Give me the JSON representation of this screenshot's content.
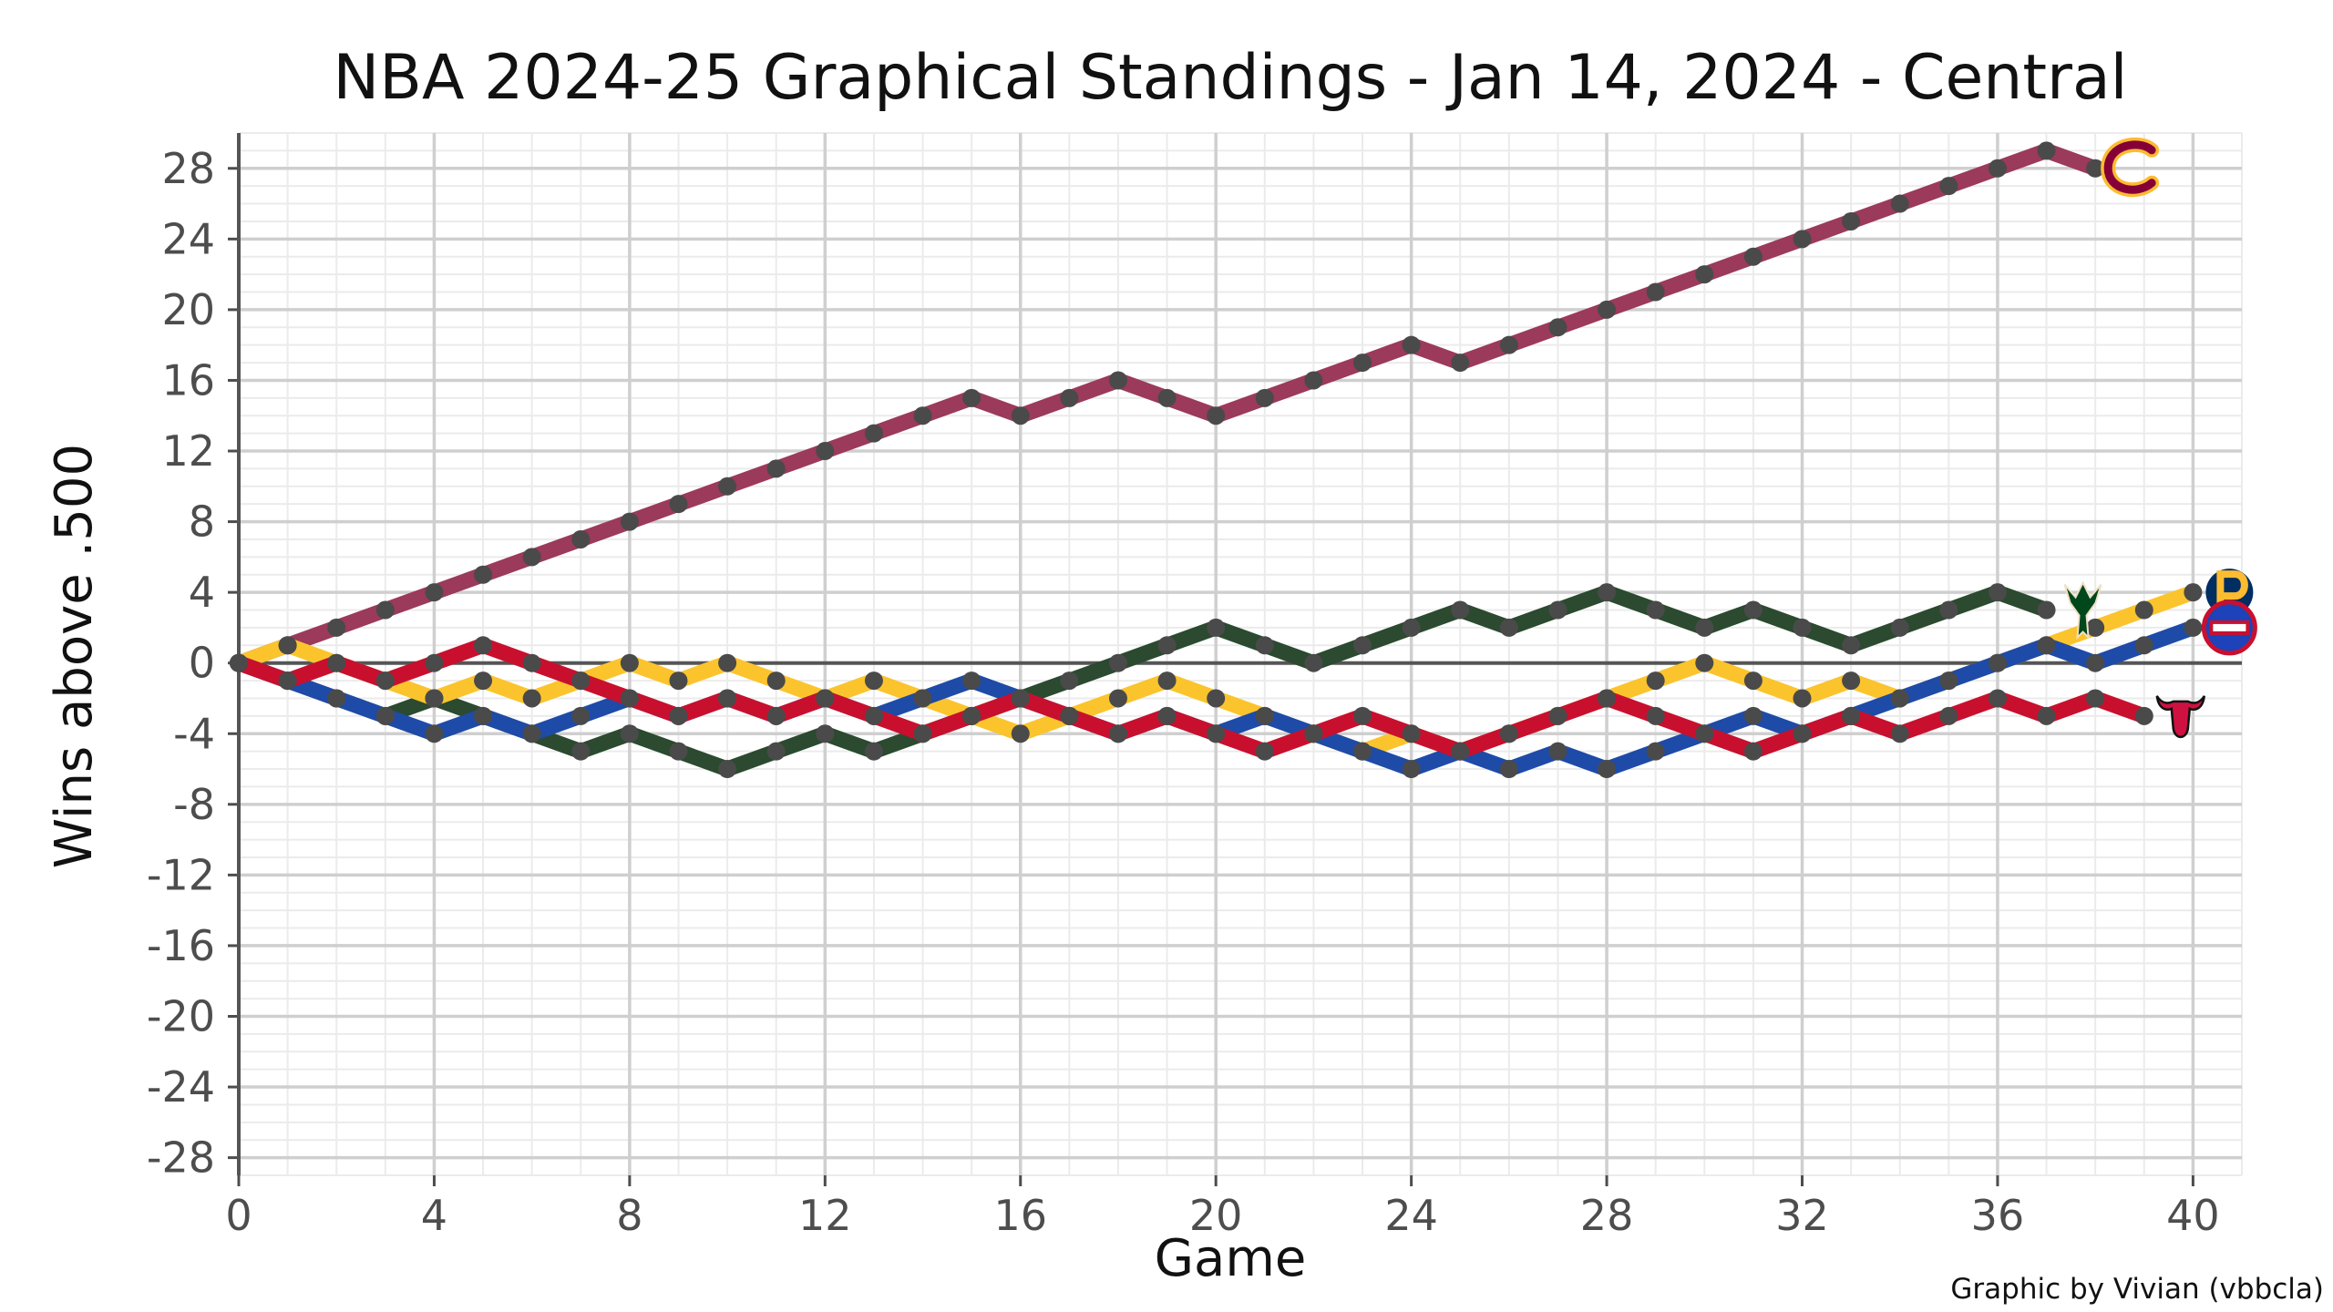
{
  "chart_data": {
    "type": "line",
    "title": "NBA 2024-25 Graphical Standings - Jan 14, 2024 - Central",
    "xlabel": "Game",
    "ylabel": "Wins above .500",
    "credit": "Graphic by Vivian (vbbcla)",
    "xlim": [
      0,
      41
    ],
    "ylim": [
      -29,
      30
    ],
    "x_ticks": [
      0,
      4,
      8,
      12,
      16,
      20,
      24,
      28,
      32,
      36,
      40
    ],
    "y_ticks": [
      28,
      24,
      20,
      16,
      12,
      8,
      4,
      0,
      -4,
      -8,
      -12,
      -16,
      -20,
      -24,
      -28
    ],
    "grid": true,
    "reference_line_y": 0,
    "series": [
      {
        "team": "cavaliers",
        "icon": "cavaliers-logo-icon",
        "color": "#9b3a5a",
        "dash_color": "#4a4a4a",
        "values": [
          0,
          1,
          2,
          3,
          4,
          5,
          6,
          7,
          8,
          9,
          10,
          11,
          12,
          13,
          14,
          15,
          14,
          15,
          16,
          15,
          14,
          15,
          16,
          17,
          18,
          17,
          18,
          19,
          20,
          21,
          22,
          23,
          24,
          25,
          26,
          27,
          28,
          29,
          28
        ]
      },
      {
        "team": "bucks",
        "icon": "bucks-logo-icon",
        "color": "#2b4a2f",
        "dash_color": "#4a4a4a",
        "values": [
          0,
          -1,
          -2,
          -3,
          -2,
          -3,
          -4,
          -5,
          -4,
          -5,
          -6,
          -5,
          -4,
          -5,
          -4,
          -3,
          -2,
          -1,
          0,
          1,
          2,
          1,
          0,
          1,
          2,
          3,
          2,
          3,
          4,
          3,
          2,
          3,
          2,
          1,
          2,
          3,
          4,
          3
        ]
      },
      {
        "team": "pacers",
        "icon": "pacers-logo-icon",
        "color": "#fbc42d",
        "dash_color": "#4a4a4a",
        "values": [
          0,
          1,
          0,
          -1,
          -2,
          -1,
          -2,
          -1,
          0,
          -1,
          0,
          -1,
          -2,
          -1,
          -2,
          -3,
          -4,
          -3,
          -2,
          -1,
          -2,
          -3,
          -4,
          -5,
          -4,
          -5,
          -4,
          -3,
          -2,
          -1,
          0,
          -1,
          -2,
          -1,
          -2,
          -1,
          0,
          1,
          2,
          3,
          4
        ]
      },
      {
        "team": "pistons",
        "icon": "pistons-logo-icon",
        "color": "#1e4ba8",
        "dash_color": "#4a4a4a",
        "values": [
          0,
          -1,
          -2,
          -3,
          -4,
          -3,
          -4,
          -3,
          -2,
          -3,
          -2,
          -3,
          -2,
          -3,
          -2,
          -1,
          -2,
          -3,
          -4,
          -3,
          -4,
          -3,
          -4,
          -5,
          -6,
          -5,
          -6,
          -5,
          -6,
          -5,
          -4,
          -3,
          -4,
          -3,
          -2,
          -1,
          0,
          1,
          0,
          1,
          2
        ]
      },
      {
        "team": "bulls",
        "icon": "bulls-logo-icon",
        "color": "#c8102e",
        "dash_color": "#4a4a4a",
        "values": [
          0,
          -1,
          0,
          -1,
          0,
          1,
          0,
          -1,
          -2,
          -3,
          -2,
          -3,
          -2,
          -3,
          -4,
          -3,
          -2,
          -3,
          -4,
          -3,
          -4,
          -5,
          -4,
          -3,
          -4,
          -5,
          -4,
          -3,
          -2,
          -3,
          -4,
          -5,
          -4,
          -3,
          -4,
          -3,
          -2,
          -3,
          -2,
          -3
        ]
      }
    ]
  }
}
